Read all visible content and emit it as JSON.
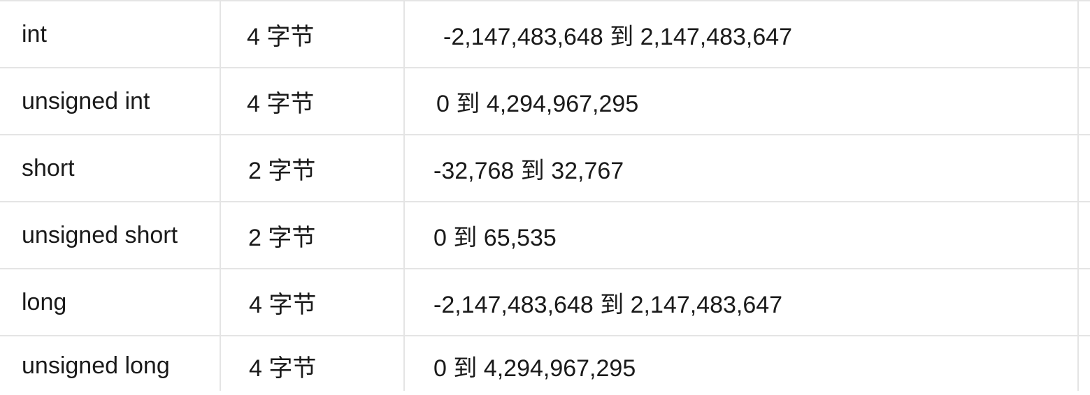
{
  "table": {
    "rows": [
      {
        "type": "int",
        "size": "4 字节",
        "range": " -2,147,483,648 到 2,147,483,647"
      },
      {
        "type": "unsigned int",
        "size": "4 字节",
        "range": "0 到 4,294,967,295"
      },
      {
        "type": "short",
        "size": "2 字节",
        "range": "-32,768 到 32,767"
      },
      {
        "type": "unsigned short",
        "size": "2 字节",
        "range": "0 到 65,535"
      },
      {
        "type": "long",
        "size": "4 字节",
        "range": "-2,147,483,648 到 2,147,483,647"
      },
      {
        "type": "unsigned long",
        "size": "4 字节",
        "range": "0 到 4,294,967,295"
      }
    ]
  }
}
